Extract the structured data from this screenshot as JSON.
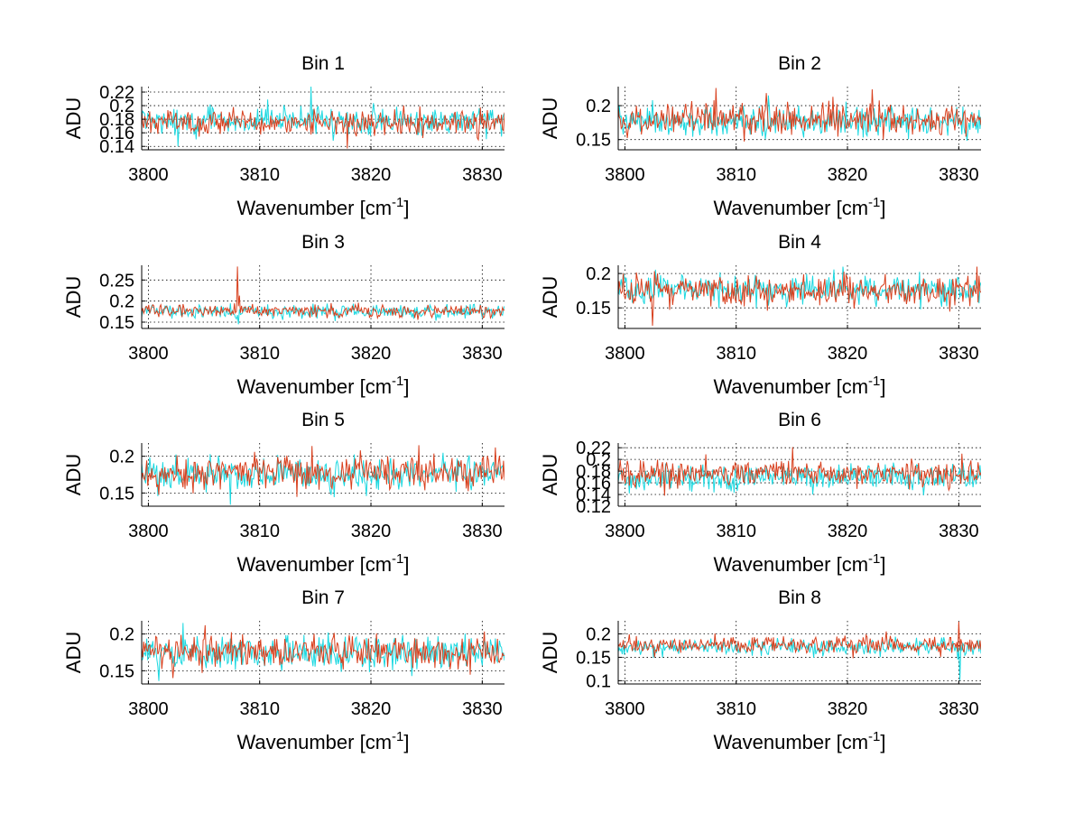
{
  "chart_data": [
    {
      "type": "line",
      "title": "Bin 1",
      "xlabel": "Wavenumber [cm",
      "xlabel_sup": "-1",
      "xlabel_end": "]",
      "ylabel": "ADU",
      "xlim": [
        3799.4,
        3832
      ],
      "ylim": [
        0.135,
        0.228
      ],
      "xticks": [
        3800,
        3810,
        3820,
        3830
      ],
      "yticks": [
        0.14,
        0.16,
        0.18,
        0.2,
        0.22
      ],
      "ytick_labels": [
        "0.14",
        "0.16",
        "0.18",
        "0.2",
        "0.22"
      ],
      "grid": true,
      "series": [
        {
          "name": "cyan",
          "color": "#1bd8e0",
          "mean": 0.177,
          "noise": 0.01,
          "seed": 11,
          "spikes": [
            [
              3814.6,
              0.228
            ],
            [
              3802.7,
              0.14
            ]
          ]
        },
        {
          "name": "red",
          "color": "#d8401e",
          "mean": 0.175,
          "noise": 0.009,
          "seed": 12,
          "spikes": [
            [
              3817.9,
              0.137
            ]
          ]
        }
      ]
    },
    {
      "type": "line",
      "title": "Bin 2",
      "xlabel": "Wavenumber [cm",
      "xlabel_sup": "-1",
      "xlabel_end": "]",
      "ylabel": "ADU",
      "xlim": [
        3799.4,
        3832
      ],
      "ylim": [
        0.135,
        0.228
      ],
      "xticks": [
        3800,
        3810,
        3820,
        3830
      ],
      "yticks": [
        0.15,
        0.2
      ],
      "ytick_labels": [
        "0.15",
        "0.2"
      ],
      "grid": true,
      "series": [
        {
          "name": "cyan",
          "color": "#1bd8e0",
          "mean": 0.177,
          "noise": 0.012,
          "seed": 21,
          "spikes": [
            [
              3812.9,
              0.215
            ]
          ]
        },
        {
          "name": "red",
          "color": "#d8401e",
          "mean": 0.18,
          "noise": 0.012,
          "seed": 22,
          "spikes": [
            [
              3808.2,
              0.226
            ],
            [
              3822.2,
              0.224
            ]
          ]
        }
      ]
    },
    {
      "type": "line",
      "title": "Bin 3",
      "xlabel": "Wavenumber [cm",
      "xlabel_sup": "-1",
      "xlabel_end": "]",
      "ylabel": "ADU",
      "xlim": [
        3799.4,
        3832
      ],
      "ylim": [
        0.135,
        0.285
      ],
      "xticks": [
        3800,
        3810,
        3820,
        3830
      ],
      "yticks": [
        0.15,
        0.2,
        0.25
      ],
      "ytick_labels": [
        "0.15",
        "0.2",
        "0.25"
      ],
      "grid": true,
      "series": [
        {
          "name": "cyan",
          "color": "#1bd8e0",
          "mean": 0.175,
          "noise": 0.008,
          "seed": 31,
          "spikes": [
            [
              3808.1,
              0.145
            ]
          ]
        },
        {
          "name": "red",
          "color": "#d8401e",
          "mean": 0.177,
          "noise": 0.008,
          "seed": 32,
          "spikes": [
            [
              3808.0,
              0.282
            ],
            [
              3808.2,
              0.213
            ]
          ]
        }
      ]
    },
    {
      "type": "line",
      "title": "Bin 4",
      "xlabel": "Wavenumber [cm",
      "xlabel_sup": "-1",
      "xlabel_end": "]",
      "ylabel": "ADU",
      "xlim": [
        3799.4,
        3832
      ],
      "ylim": [
        0.12,
        0.212
      ],
      "xticks": [
        3800,
        3810,
        3820,
        3830
      ],
      "yticks": [
        0.15,
        0.2
      ],
      "ytick_labels": [
        "0.15",
        "0.2"
      ],
      "grid": true,
      "series": [
        {
          "name": "cyan",
          "color": "#1bd8e0",
          "mean": 0.176,
          "noise": 0.011,
          "seed": 41,
          "spikes": [
            [
              3819.6,
              0.21
            ]
          ]
        },
        {
          "name": "red",
          "color": "#d8401e",
          "mean": 0.175,
          "noise": 0.011,
          "seed": 42,
          "spikes": [
            [
              3802.5,
              0.124
            ],
            [
              3831.6,
              0.21
            ]
          ]
        }
      ]
    },
    {
      "type": "line",
      "title": "Bin 5",
      "xlabel": "Wavenumber [cm",
      "xlabel_sup": "-1",
      "xlabel_end": "]",
      "ylabel": "ADU",
      "xlim": [
        3799.4,
        3832
      ],
      "ylim": [
        0.132,
        0.218
      ],
      "xticks": [
        3800,
        3810,
        3820,
        3830
      ],
      "yticks": [
        0.15,
        0.2
      ],
      "ytick_labels": [
        "0.15",
        "0.2"
      ],
      "grid": true,
      "series": [
        {
          "name": "cyan",
          "color": "#1bd8e0",
          "mean": 0.176,
          "noise": 0.011,
          "seed": 51,
          "spikes": [
            [
              3807.4,
              0.134
            ]
          ]
        },
        {
          "name": "red",
          "color": "#d8401e",
          "mean": 0.177,
          "noise": 0.011,
          "seed": 52,
          "spikes": [
            [
              3814.7,
              0.214
            ],
            [
              3824.3,
              0.215
            ],
            [
              3831.2,
              0.212
            ]
          ]
        }
      ]
    },
    {
      "type": "line",
      "title": "Bin 6",
      "xlabel": "Wavenumber [cm",
      "xlabel_sup": "-1",
      "xlabel_end": "]",
      "ylabel": "ADU",
      "xlim": [
        3799.4,
        3832
      ],
      "ylim": [
        0.12,
        0.228
      ],
      "xticks": [
        3800,
        3810,
        3820,
        3830
      ],
      "yticks": [
        0.12,
        0.14,
        0.16,
        0.18,
        0.2,
        0.22
      ],
      "ytick_labels": [
        "0.12",
        "0.14",
        "0.16",
        "0.18",
        "0.2",
        "0.22"
      ],
      "grid": true,
      "series": [
        {
          "name": "cyan",
          "color": "#1bd8e0",
          "mean": 0.169,
          "noise": 0.011,
          "seed": 61,
          "spikes": [
            [
              3806.0,
              0.145
            ]
          ]
        },
        {
          "name": "red",
          "color": "#d8401e",
          "mean": 0.176,
          "noise": 0.011,
          "seed": 62,
          "spikes": [
            [
              3815.1,
              0.221
            ],
            [
              3803.6,
              0.138
            ]
          ]
        }
      ]
    },
    {
      "type": "line",
      "title": "Bin 7",
      "xlabel": "Wavenumber [cm",
      "xlabel_sup": "-1",
      "xlabel_end": "]",
      "ylabel": "ADU",
      "xlim": [
        3799.4,
        3832
      ],
      "ylim": [
        0.132,
        0.218
      ],
      "xticks": [
        3800,
        3810,
        3820,
        3830
      ],
      "yticks": [
        0.15,
        0.2
      ],
      "ytick_labels": [
        "0.15",
        "0.2"
      ],
      "grid": true,
      "series": [
        {
          "name": "cyan",
          "color": "#1bd8e0",
          "mean": 0.174,
          "noise": 0.011,
          "seed": 71,
          "spikes": [
            [
              3803.1,
              0.215
            ],
            [
              3800.9,
              0.136
            ]
          ]
        },
        {
          "name": "red",
          "color": "#d8401e",
          "mean": 0.176,
          "noise": 0.011,
          "seed": 72,
          "spikes": [
            [
              3805.1,
              0.212
            ],
            [
              3802.2,
              0.14
            ]
          ]
        }
      ]
    },
    {
      "type": "line",
      "title": "Bin 8",
      "xlabel": "Wavenumber [cm",
      "xlabel_sup": "-1",
      "xlabel_end": "]",
      "ylabel": "ADU",
      "xlim": [
        3799.4,
        3832
      ],
      "ylim": [
        0.093,
        0.228
      ],
      "xticks": [
        3800,
        3810,
        3820,
        3830
      ],
      "yticks": [
        0.1,
        0.15,
        0.2
      ],
      "ytick_labels": [
        "0.1",
        "0.15",
        "0.2"
      ],
      "grid": true,
      "series": [
        {
          "name": "cyan",
          "color": "#1bd8e0",
          "mean": 0.172,
          "noise": 0.009,
          "seed": 81,
          "spikes": [
            [
              3830.1,
              0.101
            ],
            [
              3829.9,
              0.145
            ]
          ]
        },
        {
          "name": "red",
          "color": "#d8401e",
          "mean": 0.176,
          "noise": 0.009,
          "seed": 82,
          "spikes": [
            [
              3830.0,
              0.226
            ],
            [
              3802.7,
              0.15
            ]
          ]
        }
      ]
    }
  ]
}
